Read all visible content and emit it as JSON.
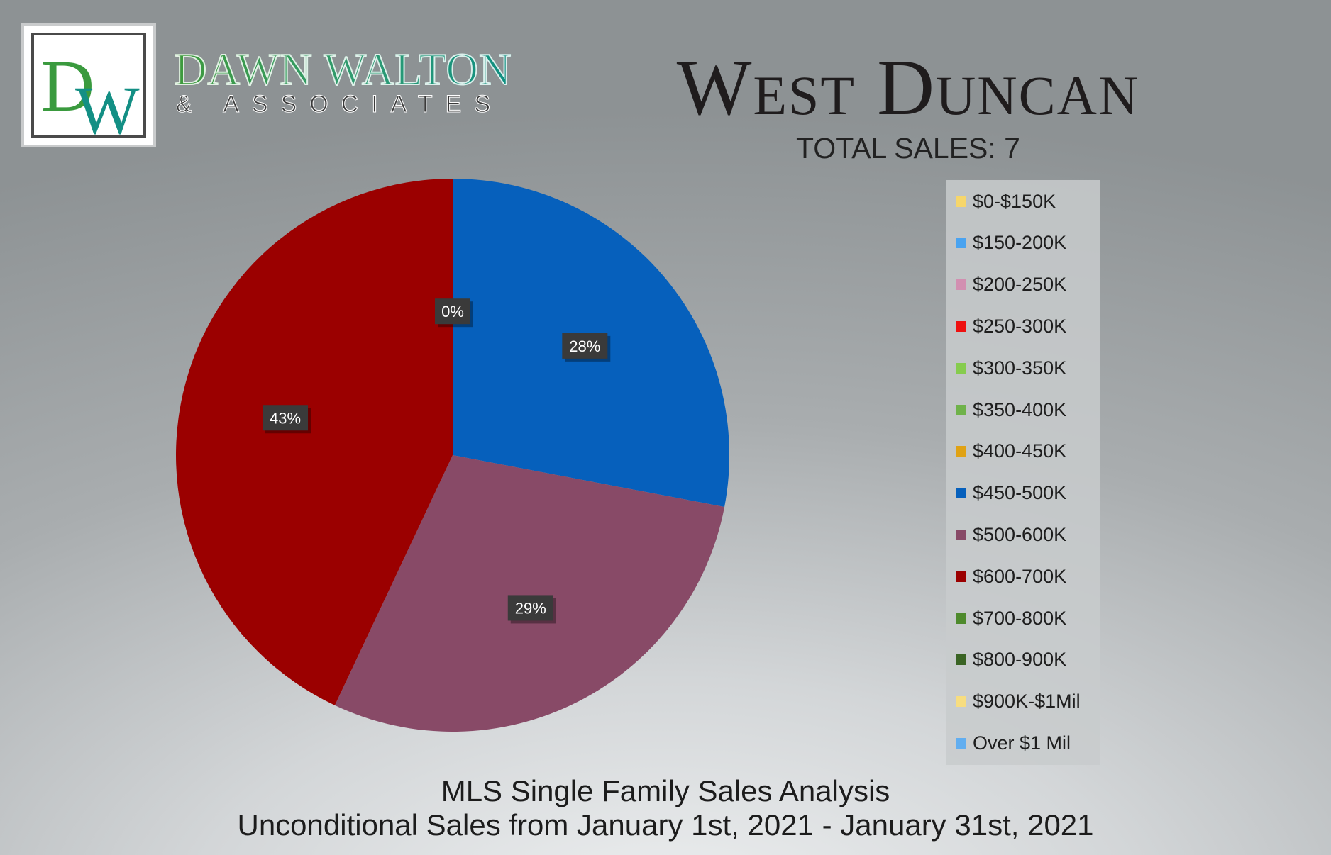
{
  "logo": {
    "monogram": "DW",
    "name": "DAWN WALTON",
    "subtitle": "& ASSOCIATES"
  },
  "header": {
    "title": "West Duncan",
    "total_sales": "TOTAL SALES: 7"
  },
  "chart_data": {
    "type": "pie",
    "categories": [
      "$0-$150K",
      "$150-200K",
      "$200-250K",
      "$250-300K",
      "$300-350K",
      "$350-400K",
      "$400-450K",
      "$450-500K",
      "$500-600K",
      "$600-700K",
      "$700-800K",
      "$800-900K",
      "$900K-$1Mil",
      "Over $1 Mil"
    ],
    "values": [
      0,
      0,
      0,
      0,
      0,
      0,
      0,
      28,
      29,
      43,
      0,
      0,
      0,
      0
    ],
    "colors": [
      "#f6d66b",
      "#4aa3f0",
      "#d28fb1",
      "#ee1010",
      "#86cc4e",
      "#6fb24a",
      "#e0a214",
      "#0660bc",
      "#884a67",
      "#9b0000",
      "#4e8a2c",
      "#3a6424",
      "#f7dd80",
      "#62aef0"
    ],
    "slice_labels": [
      {
        "text": "0%"
      },
      {
        "text": "28%"
      },
      {
        "text": "29%"
      },
      {
        "text": "43%"
      }
    ],
    "legend_position": "right"
  },
  "footer": {
    "line1": "MLS Single Family Sales Analysis",
    "line2": "Unconditional Sales from January 1st, 2021 - January 31st, 2021"
  }
}
